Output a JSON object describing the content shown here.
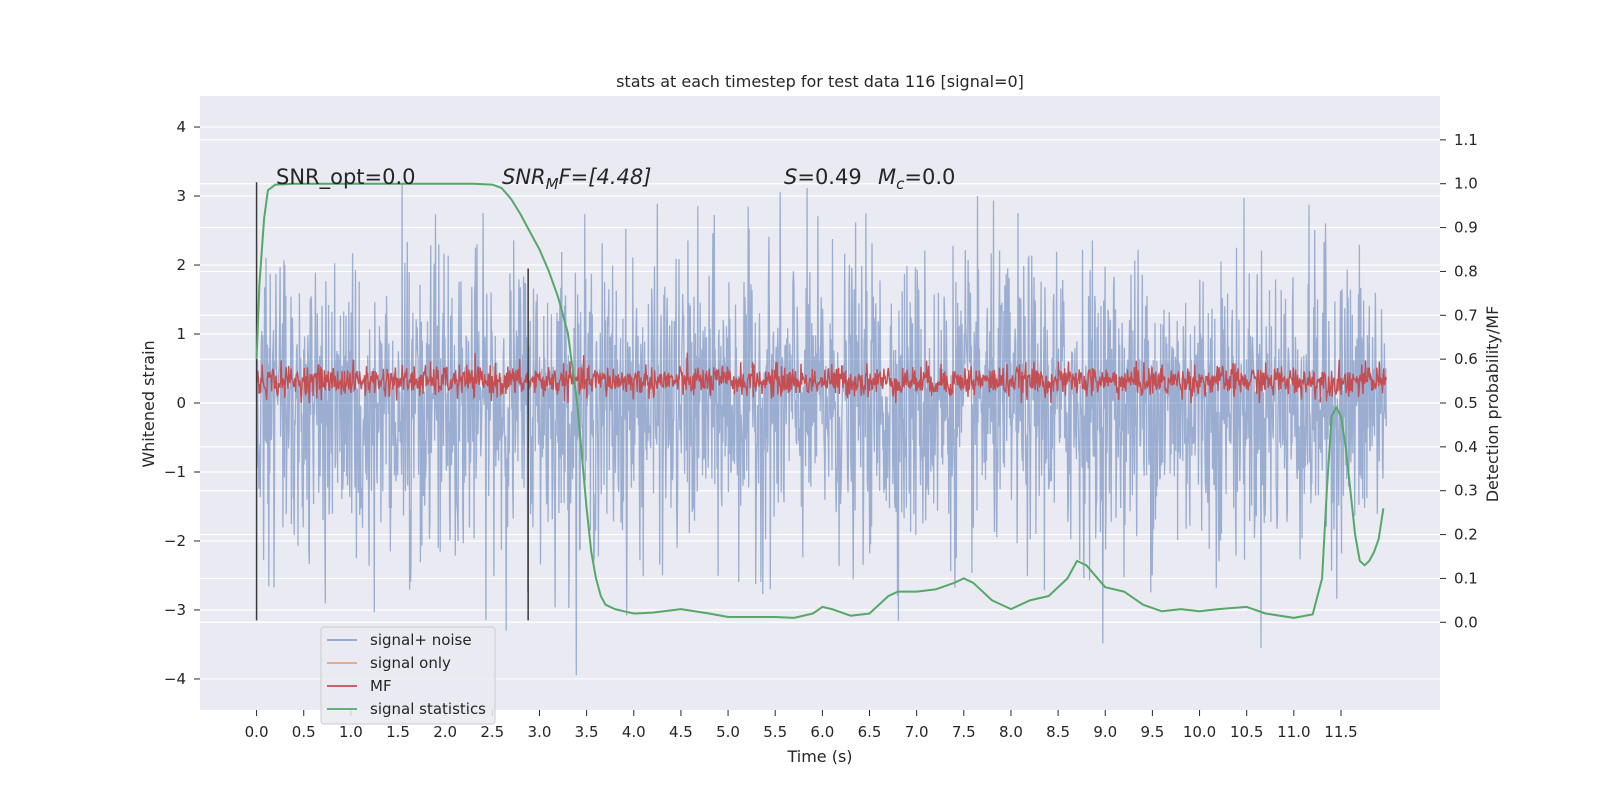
{
  "chart_data": {
    "type": "line",
    "title": "stats at each timestep for test data 116 [signal=0]",
    "xlabel": "Time (s)",
    "ylabel_left": "Whitened strain",
    "ylabel_right": "Detection probability/MF",
    "xlim": [
      -0.6,
      12.55
    ],
    "ylim_left": [
      -4.45,
      4.45
    ],
    "ylim_right": [
      -0.2,
      1.2
    ],
    "x_ticks": [
      "0.0",
      "0.5",
      "1.0",
      "1.5",
      "2.0",
      "2.5",
      "3.0",
      "3.5",
      "4.0",
      "4.5",
      "5.0",
      "5.5",
      "6.0",
      "6.5",
      "7.0",
      "7.5",
      "8.0",
      "8.5",
      "9.0",
      "9.5",
      "10.0",
      "10.5",
      "11.0",
      "11.5"
    ],
    "y_ticks_left": [
      "4",
      "3",
      "2",
      "1",
      "0",
      "−1",
      "−2",
      "−3",
      "−4"
    ],
    "y_ticks_right": [
      "1.1",
      "1.0",
      "0.9",
      "0.8",
      "0.7",
      "0.6",
      "0.5",
      "0.4",
      "0.3",
      "0.2",
      "0.1",
      "0.0"
    ],
    "grid": true,
    "legend_position": "lower-left",
    "colors": {
      "noise": "#4c72b0",
      "signal_only": "#dd8452",
      "mf": "#c44e52",
      "signal_statistics": "#55a868",
      "background": "#eaeaf2"
    },
    "annotations": {
      "snr_opt": "SNR_opt=0.0",
      "snr_mf_prefix": "SNR",
      "snr_mf_sub": "M",
      "snr_mf_suffix": "F=[4.48]",
      "s_stat": "=0.49",
      "s_symbol": "S",
      "mc_symbol": "M",
      "mc_sub": "c",
      "mc_value": "=0.0"
    },
    "vertical_markers": [
      {
        "x": 0.0,
        "y_range": [
          -3.15,
          3.2
        ]
      },
      {
        "x": 2.88,
        "y_range": [
          -3.15,
          1.95
        ]
      }
    ],
    "series": [
      {
        "name": "signal+ noise",
        "description_envelope": {
          "x_range": [
            0.0,
            11.98
          ],
          "max_abs_peak": 4.1,
          "typical_abs": 2.0
        }
      },
      {
        "name": "signal only",
        "values": []
      },
      {
        "name": "MF",
        "axis": "right",
        "x_range": [
          0.0,
          11.98
        ],
        "mean": 0.55,
        "min": 0.5,
        "max": 0.63
      },
      {
        "name": "signal statistics",
        "axis": "right",
        "x": [
          0.0,
          0.03,
          0.08,
          0.12,
          0.2,
          0.4,
          0.8,
          1.5,
          2.0,
          2.3,
          2.5,
          2.6,
          2.7,
          2.8,
          2.9,
          3.0,
          3.1,
          3.2,
          3.3,
          3.35,
          3.4,
          3.45,
          3.5,
          3.55,
          3.6,
          3.65,
          3.7,
          3.8,
          3.9,
          4.0,
          4.2,
          4.5,
          4.8,
          5.0,
          5.5,
          5.7,
          5.9,
          6.0,
          6.1,
          6.3,
          6.5,
          6.7,
          6.8,
          7.0,
          7.2,
          7.4,
          7.5,
          7.6,
          7.8,
          8.0,
          8.2,
          8.4,
          8.6,
          8.7,
          8.8,
          9.0,
          9.2,
          9.4,
          9.6,
          9.8,
          10.0,
          10.2,
          10.5,
          10.7,
          11.0,
          11.2,
          11.3,
          11.35,
          11.4,
          11.45,
          11.5,
          11.55,
          11.6,
          11.65,
          11.7,
          11.75,
          11.8,
          11.85,
          11.9,
          11.95
        ],
        "values": [
          0.6,
          0.77,
          0.92,
          0.985,
          0.998,
          1.0,
          1.0,
          1.0,
          1.0,
          1.0,
          0.998,
          0.99,
          0.965,
          0.93,
          0.89,
          0.85,
          0.8,
          0.74,
          0.66,
          0.58,
          0.5,
          0.38,
          0.26,
          0.16,
          0.1,
          0.06,
          0.04,
          0.03,
          0.025,
          0.02,
          0.022,
          0.03,
          0.02,
          0.012,
          0.012,
          0.01,
          0.02,
          0.035,
          0.03,
          0.015,
          0.02,
          0.06,
          0.07,
          0.07,
          0.075,
          0.09,
          0.1,
          0.09,
          0.05,
          0.03,
          0.05,
          0.06,
          0.1,
          0.14,
          0.13,
          0.08,
          0.07,
          0.04,
          0.025,
          0.03,
          0.025,
          0.03,
          0.035,
          0.02,
          0.01,
          0.018,
          0.1,
          0.3,
          0.47,
          0.49,
          0.47,
          0.4,
          0.3,
          0.2,
          0.14,
          0.13,
          0.14,
          0.16,
          0.19,
          0.26
        ]
      }
    ],
    "legend": [
      "signal+ noise",
      "signal only",
      "MF",
      "signal statistics"
    ]
  }
}
